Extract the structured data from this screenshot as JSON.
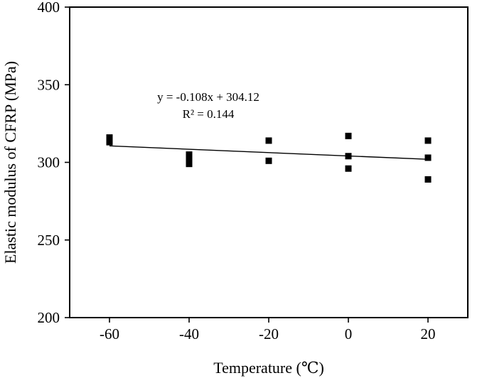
{
  "chart_data": {
    "type": "scatter",
    "xlabel": "Temperature (℃)",
    "ylabel": "Elastic modulus of CFRP (MPa)",
    "xlim": [
      -70,
      30
    ],
    "ylim": [
      200,
      400
    ],
    "xticks": [
      -60,
      -40,
      -20,
      0,
      20
    ],
    "yticks": [
      200,
      250,
      300,
      350,
      400
    ],
    "xtick_labels": [
      "-60",
      "-40",
      "-20",
      "0",
      "20"
    ],
    "ytick_labels": [
      "200",
      "250",
      "300",
      "350",
      "400"
    ],
    "grid": false,
    "points": [
      {
        "x": -60,
        "y": 316
      },
      {
        "x": -60,
        "y": 313
      },
      {
        "x": -40,
        "y": 305
      },
      {
        "x": -40,
        "y": 302
      },
      {
        "x": -40,
        "y": 299
      },
      {
        "x": -20,
        "y": 314
      },
      {
        "x": -20,
        "y": 301
      },
      {
        "x": 0,
        "y": 317
      },
      {
        "x": 0,
        "y": 304
      },
      {
        "x": 0,
        "y": 296
      },
      {
        "x": 20,
        "y": 314
      },
      {
        "x": 20,
        "y": 303
      },
      {
        "x": 20,
        "y": 289
      }
    ],
    "fit": {
      "slope": -0.108,
      "intercept": 304.12,
      "x_range": [
        -60,
        20
      ]
    },
    "annotations": [
      "y = -0.108x + 304.12",
      "R² = 0.144"
    ]
  }
}
